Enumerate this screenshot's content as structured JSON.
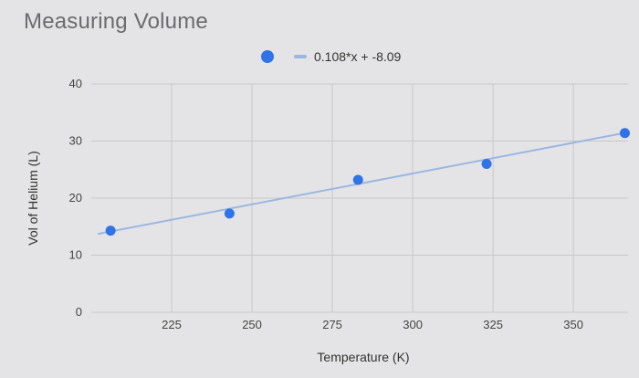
{
  "chart_data": {
    "type": "scatter",
    "title": "Measuring Volume",
    "xlabel": "Temperature (K)",
    "ylabel": "Vol of Helium (L)",
    "xlim": [
      200,
      367
    ],
    "ylim": [
      0,
      40
    ],
    "xticks": [
      225,
      250,
      275,
      300,
      325,
      350
    ],
    "yticks": [
      0,
      10,
      20,
      30,
      40
    ],
    "grid": true,
    "legend_position": "top-center",
    "points": [
      {
        "x": 206,
        "y": 14.3
      },
      {
        "x": 243,
        "y": 17.3
      },
      {
        "x": 283,
        "y": 23.2
      },
      {
        "x": 323,
        "y": 26.0
      },
      {
        "x": 366,
        "y": 31.4
      }
    ],
    "trendline": {
      "label": "0.108*x + -8.09",
      "slope": 0.108,
      "intercept": -8.09
    },
    "colors": {
      "point": "#2f73e6",
      "trendline": "#9bb7e0",
      "grid": "#c8c8cc",
      "title": "#6b6b6f"
    }
  }
}
